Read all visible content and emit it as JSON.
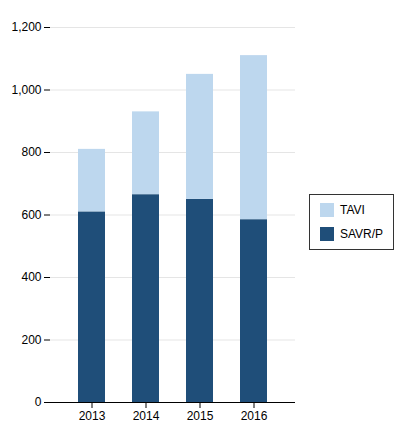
{
  "chart_data": {
    "type": "bar",
    "stacked": true,
    "categories": [
      "2013",
      "2014",
      "2015",
      "2016"
    ],
    "series": [
      {
        "name": "SAVR/P",
        "color": "#1F4E79",
        "values": [
          610,
          665,
          650,
          585
        ]
      },
      {
        "name": "TAVI",
        "color": "#BDD7EE",
        "values": [
          200,
          265,
          400,
          525
        ]
      }
    ],
    "ylim": [
      0,
      1200
    ],
    "yticks": [
      0,
      200,
      400,
      600,
      800,
      1000,
      1200
    ],
    "grid": true,
    "legend": "right"
  }
}
